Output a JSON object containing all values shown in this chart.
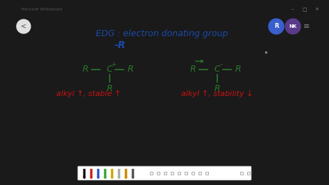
{
  "fig_width": 4.74,
  "fig_height": 2.66,
  "dpi": 100,
  "outer_bg": "#1a1a1a",
  "titlebar_bg": "#f0f0f0",
  "titlebar_text": "Microsoft Whiteboard",
  "titlebar_text_color": "#555555",
  "whiteboard_bg": "#ffffff",
  "toolbar_bg": "#ebebeb",
  "title_text": "EDG : electron donating group",
  "title_color": "#1a4aaa",
  "subtitle_text": "-R",
  "subtitle_color": "#1a4aaa",
  "structure_color": "#2a7a2a",
  "label1": "alkyl ↑, stable ↑",
  "label2": "alkyl ↑, stability ↓",
  "label_color": "#cc1111",
  "back_btn_color": "#e0e0e0",
  "back_btn_text": "‹",
  "avatar1_color": "#3a5fcc",
  "avatar1_text": "R",
  "avatar2_color": "#5a3a8a",
  "avatar2_text": "NK",
  "menu_color": "#888888",
  "winctrl_color": "#888888"
}
